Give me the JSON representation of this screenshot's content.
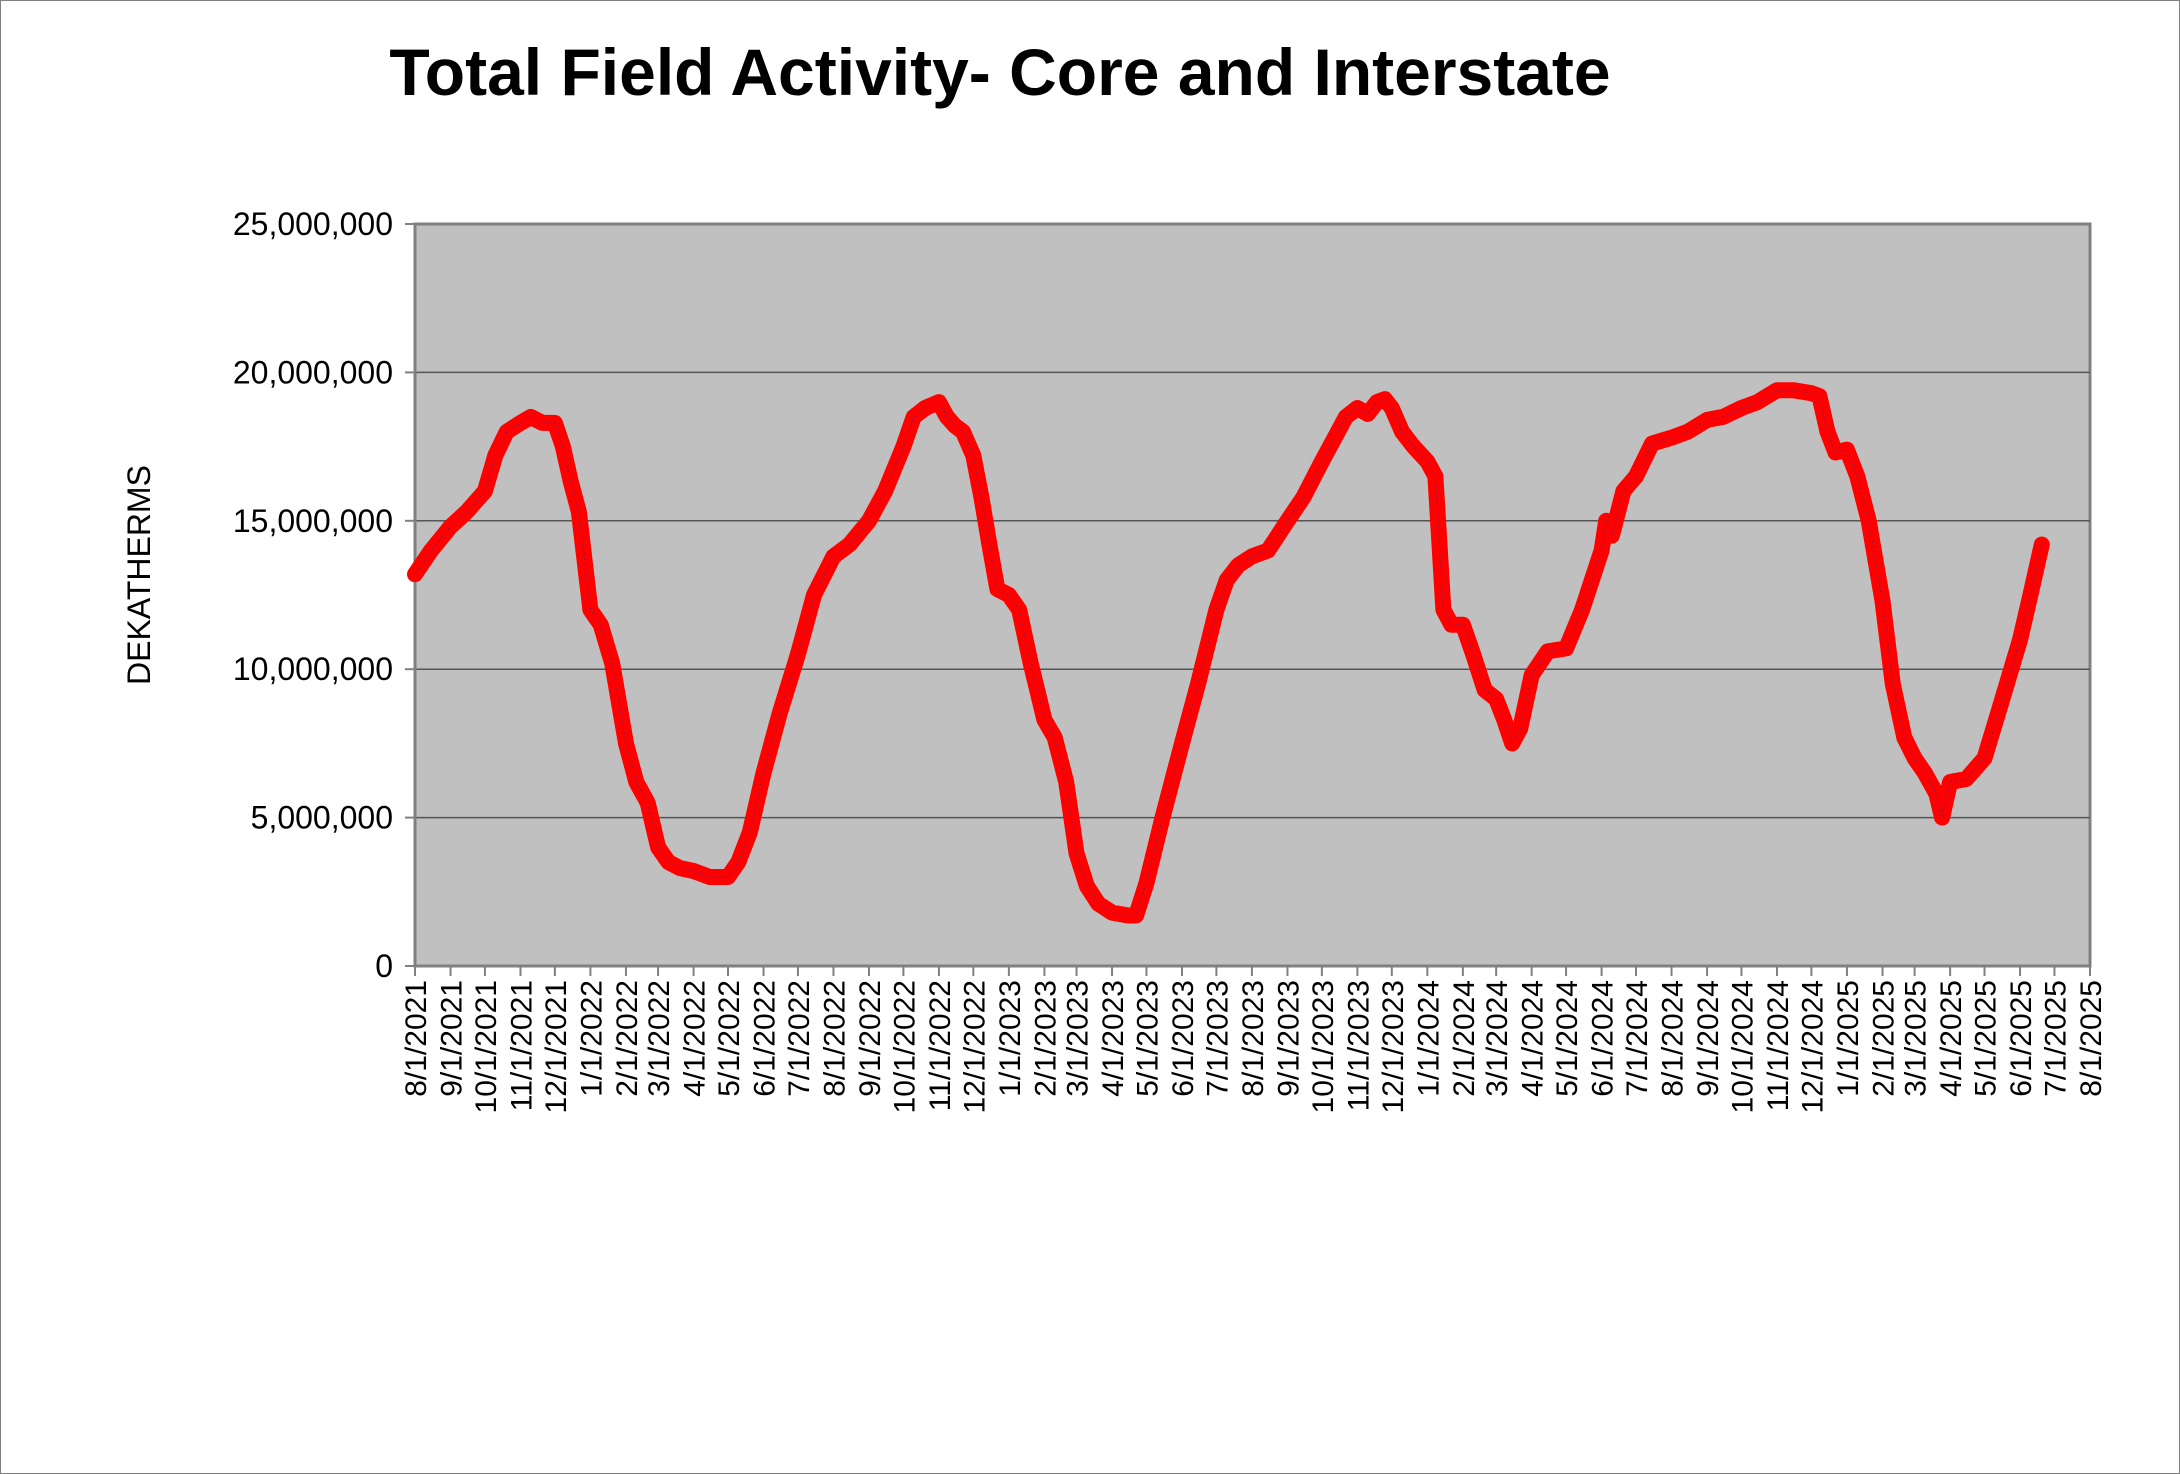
{
  "chart_data": {
    "type": "line",
    "title": "Total Field Activity- Core and Interstate",
    "ylabel": "DEKATHERMS",
    "xlabel": "",
    "ylim": [
      0,
      25000000
    ],
    "yticks": [
      0,
      5000000,
      10000000,
      15000000,
      20000000,
      25000000
    ],
    "ytick_labels": [
      "0",
      "5,000,000",
      "10,000,000",
      "15,000,000",
      "20,000,000",
      "25,000,000"
    ],
    "xlim": [
      "8/1/2021",
      "8/1/2025"
    ],
    "xtick_labels": [
      "8/1/2021",
      "9/1/2021",
      "10/1/2021",
      "11/1/2021",
      "12/1/2021",
      "1/1/2022",
      "2/1/2022",
      "3/1/2022",
      "4/1/2022",
      "5/1/2022",
      "6/1/2022",
      "7/1/2022",
      "8/1/2022",
      "9/1/2022",
      "10/1/2022",
      "11/1/2022",
      "12/1/2022",
      "1/1/2023",
      "2/1/2023",
      "3/1/2023",
      "4/1/2023",
      "5/1/2023",
      "6/1/2023",
      "7/1/2023",
      "8/1/2023",
      "9/1/2023",
      "10/1/2023",
      "11/1/2023",
      "12/1/2023",
      "1/1/2024",
      "2/1/2024",
      "3/1/2024",
      "4/1/2024",
      "5/1/2024",
      "6/1/2024",
      "7/1/2024",
      "8/1/2024",
      "9/1/2024",
      "10/1/2024",
      "11/1/2024",
      "12/1/2024",
      "1/1/2025",
      "2/1/2025",
      "3/1/2025",
      "4/1/2025",
      "5/1/2025",
      "6/1/2025",
      "7/1/2025",
      "8/1/2025"
    ],
    "grid": true,
    "plot_background": "#c0c0c0",
    "line_color": "#ff0000",
    "series": [
      {
        "x": [
          "8/1/2021",
          "8/15/2021",
          "9/1/2021",
          "9/15/2021",
          "10/1/2021",
          "10/10/2021",
          "10/20/2021",
          "11/1/2021",
          "11/10/2021",
          "11/20/2021",
          "12/1/2021",
          "12/8/2021",
          "12/15/2021",
          "12/22/2021",
          "1/1/2022",
          "1/10/2022",
          "1/20/2022",
          "2/1/2022",
          "2/10/2022",
          "2/20/2022",
          "3/1/2022",
          "3/10/2022",
          "3/20/2022",
          "4/1/2022",
          "4/15/2022",
          "5/1/2022",
          "5/10/2022",
          "5/20/2022",
          "6/1/2022",
          "6/15/2022",
          "7/1/2022",
          "7/15/2022",
          "8/1/2022",
          "8/15/2022",
          "9/1/2022",
          "9/15/2022",
          "10/1/2022",
          "10/10/2022",
          "10/20/2022",
          "11/1/2022",
          "11/8/2022",
          "11/15/2022",
          "11/22/2022",
          "12/1/2022",
          "12/8/2022",
          "12/15/2022",
          "12/22/2022",
          "1/1/2023",
          "1/10/2023",
          "1/20/2023",
          "2/1/2023",
          "2/10/2023",
          "2/20/2023",
          "3/1/2023",
          "3/10/2023",
          "3/20/2023",
          "4/1/2023",
          "4/15/2023",
          "4/22/2023",
          "5/1/2023",
          "5/15/2023",
          "6/1/2023",
          "6/15/2023",
          "7/1/2023",
          "7/10/2023",
          "7/20/2023",
          "8/1/2023",
          "8/15/2023",
          "9/1/2023",
          "9/15/2023",
          "10/1/2023",
          "10/15/2023",
          "10/22/2023",
          "11/1/2023",
          "11/10/2023",
          "11/18/2023",
          "11/25/2023",
          "12/1/2023",
          "12/10/2023",
          "12/20/2023",
          "1/1/2024",
          "1/8/2024",
          "1/15/2024",
          "1/22/2024",
          "2/1/2024",
          "2/10/2024",
          "2/20/2024",
          "3/1/2024",
          "3/8/2024",
          "3/15/2024",
          "3/22/2024",
          "4/1/2024",
          "4/15/2024",
          "5/1/2024",
          "5/15/2024",
          "6/1/2024",
          "6/5/2024",
          "6/10/2024",
          "6/20/2024",
          "7/1/2024",
          "7/15/2024",
          "8/1/2024",
          "8/15/2024",
          "9/1/2024",
          "9/15/2024",
          "10/1/2024",
          "10/15/2024",
          "11/1/2024",
          "11/15/2024",
          "12/1/2024",
          "12/8/2024",
          "12/15/2024",
          "12/22/2024",
          "1/1/2025",
          "1/10/2025",
          "1/20/2025",
          "2/1/2025",
          "2/10/2025",
          "2/20/2025",
          "3/1/2025",
          "3/10/2025",
          "3/20/2025",
          "3/25/2025",
          "4/1/2025",
          "4/15/2025",
          "5/1/2025",
          "5/15/2025",
          "6/1/2025",
          "6/10/2025",
          "6/20/2025"
        ],
        "values": [
          13200000,
          14000000,
          14800000,
          15300000,
          16000000,
          17200000,
          18000000,
          18300000,
          18500000,
          18300000,
          18300000,
          17500000,
          16300000,
          15300000,
          12000000,
          11500000,
          10200000,
          7500000,
          6200000,
          5500000,
          4000000,
          3500000,
          3300000,
          3200000,
          3000000,
          3000000,
          3500000,
          4500000,
          6500000,
          8500000,
          10500000,
          12500000,
          13800000,
          14200000,
          15000000,
          16000000,
          17500000,
          18500000,
          18800000,
          19000000,
          18500000,
          18200000,
          18000000,
          17200000,
          15800000,
          14200000,
          12700000,
          12500000,
          12000000,
          10200000,
          8300000,
          7700000,
          6200000,
          3800000,
          2700000,
          2100000,
          1800000,
          1700000,
          1700000,
          2800000,
          5000000,
          7500000,
          9500000,
          12000000,
          13000000,
          13500000,
          13800000,
          14000000,
          15000000,
          15800000,
          17000000,
          18000000,
          18500000,
          18800000,
          18600000,
          19000000,
          19100000,
          18800000,
          18000000,
          17500000,
          17000000,
          16500000,
          12000000,
          11500000,
          11500000,
          10500000,
          9300000,
          9000000,
          8300000,
          7500000,
          8000000,
          9800000,
          10600000,
          10700000,
          12000000,
          14000000,
          15000000,
          14500000,
          16000000,
          16500000,
          17600000,
          17800000,
          18000000,
          18400000,
          18500000,
          18800000,
          19000000,
          19400000,
          19400000,
          19300000,
          19200000,
          18000000,
          17300000,
          17400000,
          16500000,
          15000000,
          12300000,
          9500000,
          7700000,
          7000000,
          6500000,
          5800000,
          5000000,
          6200000,
          6300000,
          7000000,
          8800000,
          11000000,
          12500000,
          14200000
        ]
      }
    ]
  }
}
